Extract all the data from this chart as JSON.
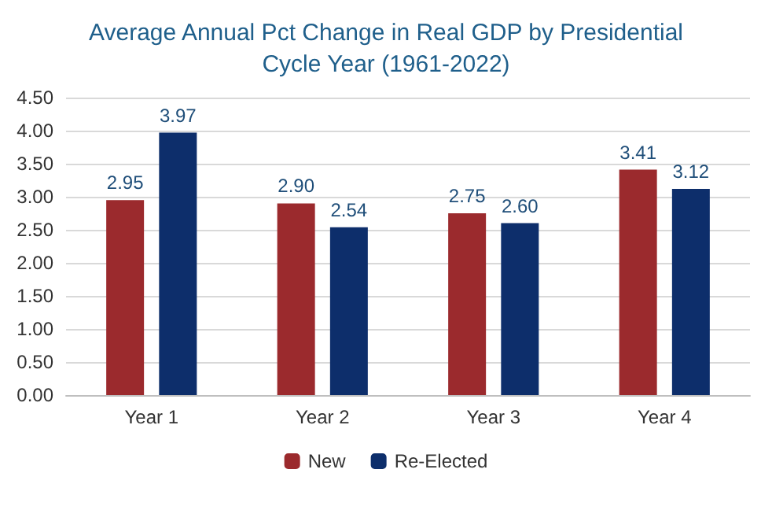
{
  "chart_data": {
    "type": "bar",
    "title": "Average Annual Pct Change in Real GDP by Presidential\nCycle Year (1961-2022)",
    "categories": [
      "Year 1",
      "Year 2",
      "Year 3",
      "Year 4"
    ],
    "series": [
      {
        "name": "New",
        "color": "#9b2a2d",
        "values": [
          2.95,
          2.9,
          2.75,
          3.41
        ],
        "value_labels": [
          "2.95",
          "2.90",
          "2.75",
          "3.41"
        ]
      },
      {
        "name": "Re-Elected",
        "color": "#0d2e6b",
        "values": [
          3.97,
          2.54,
          2.6,
          3.12
        ],
        "value_labels": [
          "3.97",
          "2.54",
          "2.60",
          "3.12"
        ]
      }
    ],
    "ylim": [
      0,
      4.5
    ],
    "yticks": [
      {
        "value": 0,
        "label": "0.00"
      },
      {
        "value": 0.5,
        "label": "0.50"
      },
      {
        "value": 1,
        "label": "1.00"
      },
      {
        "value": 1.5,
        "label": "1.50"
      },
      {
        "value": 2,
        "label": "2.00"
      },
      {
        "value": 2.5,
        "label": "2.50"
      },
      {
        "value": 3,
        "label": "3.00"
      },
      {
        "value": 3.5,
        "label": "3.50"
      },
      {
        "value": 4,
        "label": "4.00"
      },
      {
        "value": 4.5,
        "label": "4.50"
      }
    ],
    "grid": "y",
    "legend": "bottom"
  }
}
